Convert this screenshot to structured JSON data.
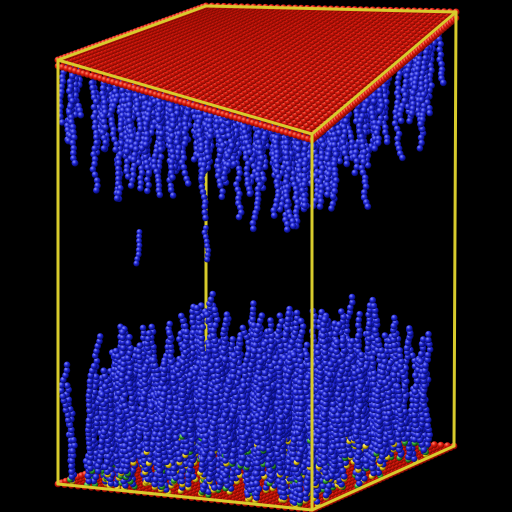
{
  "scene": {
    "background": "#000000",
    "colors": {
      "surface_atom": "#e01a0e",
      "surface_atom_highlight": "#ff7a5c",
      "chain_atom": "#1a1fc8",
      "chain_atom_highlight": "#7f86ff",
      "anchor_atom": "#f0d21a",
      "anchor_atom_alt": "#2fa12f",
      "box_edge": "#d8cb2c"
    },
    "icons": [
      "simulation-box-wireframe",
      "top-red-substrate",
      "bottom-red-substrate",
      "blue-polymer-brushes"
    ]
  }
}
